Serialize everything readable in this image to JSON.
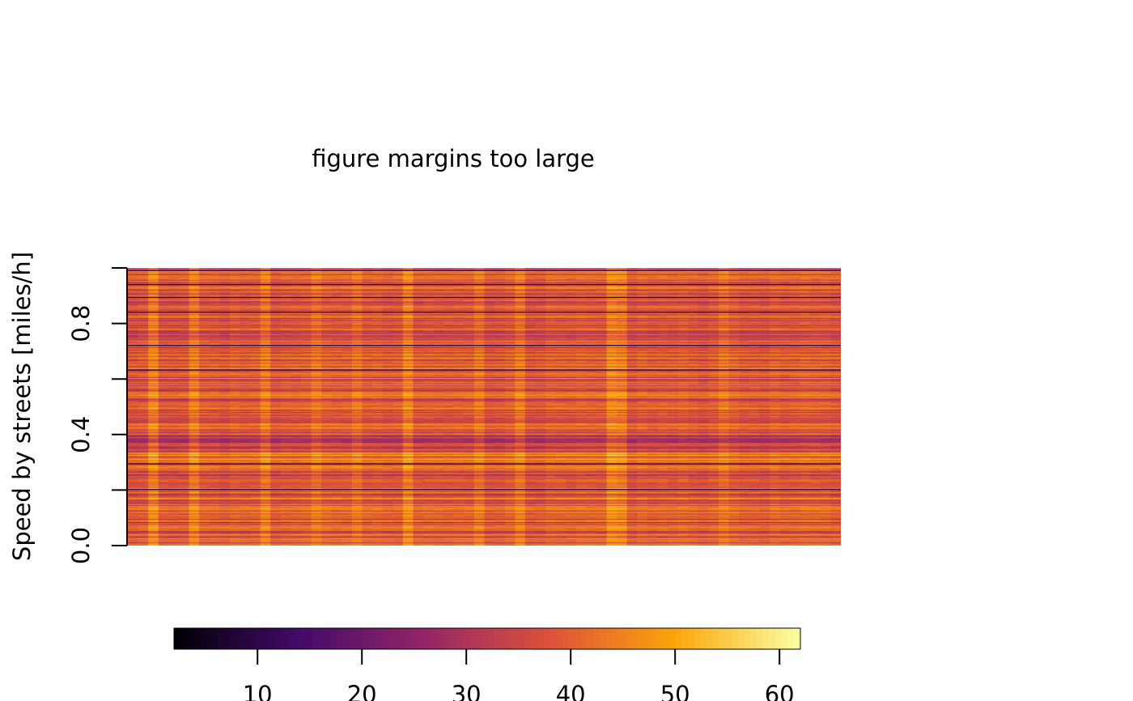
{
  "message": "figure margins too large",
  "chart_data": [
    {
      "type": "heatmap",
      "title": "",
      "xlabel": "",
      "ylabel": "Speed by streets [miles/h]",
      "ylim": [
        0,
        1
      ],
      "y_ticks": [
        0.0,
        0.2,
        0.4,
        0.6,
        0.8,
        1.0
      ],
      "y_tick_labels": [
        "0.0",
        "0.4",
        "0.8"
      ],
      "x_axis_drawn": false,
      "columns": 70,
      "rows": 260,
      "dominant_value_range": [
        24,
        48
      ],
      "notable_values": {
        "dark_streaks": 8,
        "bright_columns": 50
      },
      "colormap": "inferno"
    },
    {
      "type": "colorbar",
      "range": [
        2,
        62
      ],
      "ticks": [
        10,
        20,
        30,
        40,
        50,
        60
      ],
      "tick_labels": [
        "10",
        "20",
        "30",
        "40",
        "50",
        "60"
      ],
      "colormap": "inferno",
      "colormap_stops": [
        "#000004",
        "#420A68",
        "#932667",
        "#DD513A",
        "#FCA50A",
        "#FCFFA4"
      ]
    }
  ]
}
